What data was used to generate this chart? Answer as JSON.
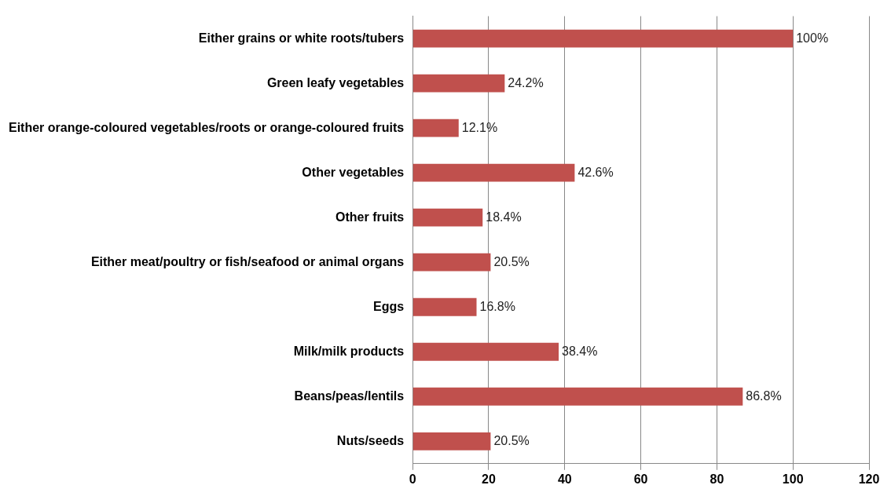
{
  "chart_data": {
    "type": "bar",
    "orientation": "horizontal",
    "categories": [
      "Either grains or white roots/tubers",
      "Green leafy vegetables",
      "Either orange-coloured vegetables/roots or orange-coloured fruits",
      "Other vegetables",
      "Other fruits",
      "Either meat/poultry or fish/seafood or animal organs",
      "Eggs",
      "Milk/milk products",
      "Beans/peas/lentils",
      "Nuts/seeds"
    ],
    "values": [
      100,
      24.2,
      12.1,
      42.6,
      18.4,
      20.5,
      16.8,
      38.4,
      86.8,
      20.5
    ],
    "value_labels": [
      "100%",
      "24.2%",
      "12.1%",
      "42.6%",
      "18.4%",
      "20.5%",
      "16.8%",
      "38.4%",
      "86.8%",
      "20.5%"
    ],
    "color": "#c0504d",
    "xlim": [
      0,
      120
    ],
    "xticks": [
      0,
      20,
      40,
      60,
      80,
      100,
      120
    ],
    "grid": "x",
    "legend": false
  }
}
